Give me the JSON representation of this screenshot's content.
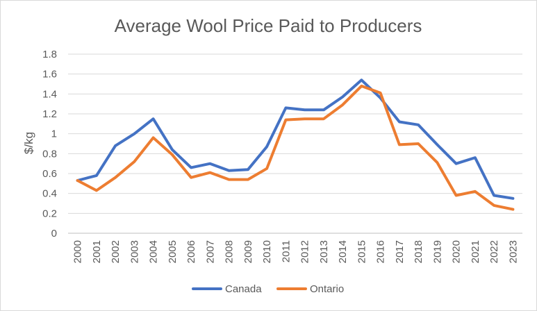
{
  "chart_data": {
    "type": "line",
    "title": "Average Wool Price Paid to Producers",
    "xlabel": "",
    "ylabel": "$/kg",
    "ylim": [
      0,
      1.8
    ],
    "y_ticks": [
      "0",
      "0.2",
      "0.4",
      "0.6",
      "0.8",
      "1",
      "1.2",
      "1.4",
      "1.6",
      "1.8"
    ],
    "grid": true,
    "legend_position": "bottom",
    "categories": [
      "2000",
      "2001",
      "2002",
      "2003",
      "2004",
      "2005",
      "2006",
      "2007",
      "2008",
      "2009",
      "2010",
      "2011",
      "2012",
      "2013",
      "2014",
      "2015",
      "2016",
      "2017",
      "2018",
      "2019",
      "2020",
      "2021",
      "2022",
      "2023"
    ],
    "series": [
      {
        "name": "Canada",
        "color": "#4472C4",
        "values": [
          0.53,
          0.58,
          0.88,
          1.0,
          1.15,
          0.84,
          0.66,
          0.7,
          0.63,
          0.64,
          0.87,
          1.26,
          1.24,
          1.24,
          1.37,
          1.54,
          1.36,
          1.12,
          1.09,
          0.89,
          0.7,
          0.76,
          0.38,
          0.35
        ]
      },
      {
        "name": "Ontario",
        "color": "#ED7D31",
        "values": [
          0.53,
          0.43,
          0.56,
          0.72,
          0.96,
          0.79,
          0.56,
          0.61,
          0.54,
          0.54,
          0.65,
          1.14,
          1.15,
          1.15,
          1.29,
          1.48,
          1.41,
          0.89,
          0.9,
          0.71,
          0.38,
          0.42,
          0.28,
          0.24
        ]
      }
    ]
  }
}
